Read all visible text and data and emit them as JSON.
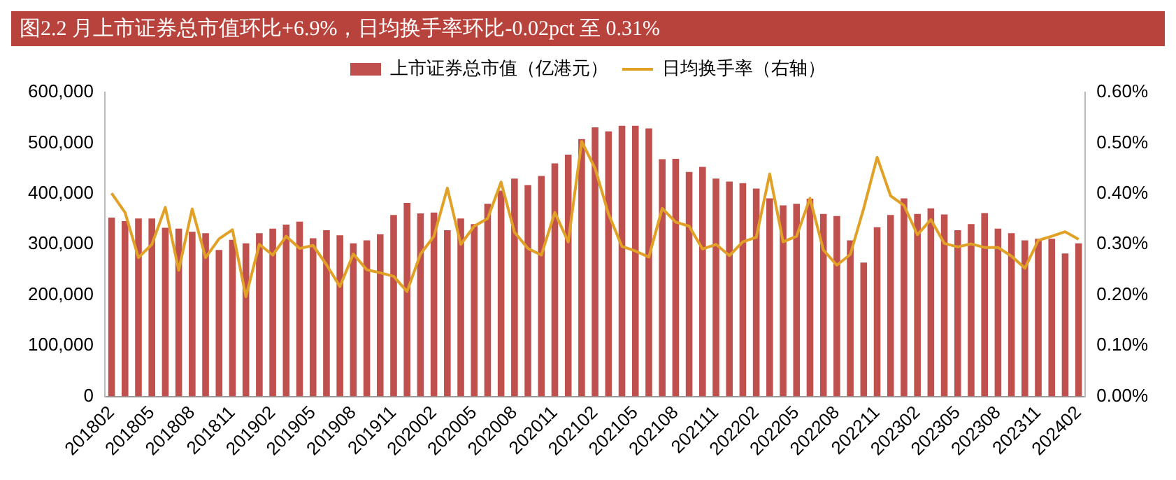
{
  "chart_data": {
    "type": "bar",
    "title": "图2.2 月上市证券总市值环比+6.9%，日均换手率环比-0.02pct 至 0.31%",
    "categories": [
      "201802",
      null,
      null,
      "201805",
      null,
      null,
      "201808",
      null,
      null,
      "201811",
      null,
      null,
      "201902",
      null,
      null,
      "201905",
      null,
      null,
      "201908",
      null,
      null,
      "201911",
      null,
      null,
      "202002",
      null,
      null,
      "202005",
      null,
      null,
      "202008",
      null,
      null,
      "202011",
      null,
      null,
      "202102",
      null,
      null,
      "202105",
      null,
      null,
      "202108",
      null,
      null,
      "202111",
      null,
      null,
      "202202",
      null,
      null,
      "202205",
      null,
      null,
      "202208",
      null,
      null,
      "202211",
      null,
      null,
      "202302",
      null,
      null,
      "202305",
      null,
      null,
      "202308",
      null,
      null,
      "202311",
      null,
      null,
      "202402"
    ],
    "series": [
      {
        "name": "上市证券总市值（亿港元）",
        "color": "#c0504d",
        "values": [
          353000,
          346000,
          351000,
          351000,
          333000,
          331000,
          325000,
          322000,
          289000,
          309000,
          302000,
          322000,
          331000,
          339000,
          345000,
          312000,
          328000,
          318000,
          302000,
          308000,
          320000,
          358000,
          382000,
          361000,
          363000,
          328000,
          351000,
          340000,
          380000,
          406000,
          430000,
          417000,
          435000,
          460000,
          477000,
          508000,
          531000,
          523000,
          534000,
          534000,
          529000,
          468000,
          469000,
          443000,
          453000,
          430000,
          424000,
          421000,
          410000,
          391000,
          377000,
          380000,
          390000,
          360000,
          356000,
          308000,
          264000,
          334000,
          358000,
          391000,
          360000,
          371000,
          359000,
          328000,
          340000,
          362000,
          331000,
          322000,
          308000,
          311000,
          311000,
          282000,
          302000
        ]
      },
      {
        "name": "日均换手率（右轴）",
        "type": "line",
        "axis": "y2",
        "color": "#e0a126",
        "values": [
          0.401,
          0.363,
          0.274,
          0.3,
          0.373,
          0.249,
          0.37,
          0.274,
          0.311,
          0.329,
          0.197,
          0.3,
          0.279,
          0.316,
          0.292,
          0.298,
          0.26,
          0.217,
          0.281,
          0.25,
          0.244,
          0.237,
          0.207,
          0.281,
          0.316,
          0.411,
          0.3,
          0.336,
          0.351,
          0.423,
          0.324,
          0.292,
          0.279,
          0.363,
          0.305,
          0.503,
          0.45,
          0.36,
          0.296,
          0.287,
          0.275,
          0.371,
          0.344,
          0.336,
          0.291,
          0.3,
          0.278,
          0.305,
          0.314,
          0.439,
          0.305,
          0.316,
          0.391,
          0.289,
          0.259,
          0.28,
          0.371,
          0.472,
          0.396,
          0.377,
          0.319,
          0.349,
          0.302,
          0.295,
          0.301,
          0.294,
          0.294,
          0.277,
          0.253,
          0.308,
          0.316,
          0.325,
          0.31
        ]
      }
    ],
    "ylim": [
      0,
      600000
    ],
    "yticks": [
      0,
      {
        "value": 100000,
        "label": "100,000"
      },
      {
        "value": 200000,
        "label": "200,000"
      },
      {
        "value": 300000,
        "label": "300,000"
      },
      {
        "value": 400000,
        "label": "400,000"
      },
      {
        "value": 500000,
        "label": "500,000"
      },
      {
        "value": 600000,
        "label": "600,000"
      }
    ],
    "y2lim": [
      0,
      0.6
    ],
    "y2ticks": [
      {
        "value": 0,
        "label": "0.00%"
      },
      {
        "value": 0.1,
        "label": "0.10%"
      },
      {
        "value": 0.2,
        "label": "0.20%"
      },
      {
        "value": 0.3,
        "label": "0.30%"
      },
      {
        "value": 0.4,
        "label": "0.40%"
      },
      {
        "value": 0.5,
        "label": "0.50%"
      },
      {
        "value": 0.6,
        "label": "0.60%"
      }
    ],
    "legend": "top",
    "grid": false,
    "marker": "none",
    "line_style": "solid"
  }
}
